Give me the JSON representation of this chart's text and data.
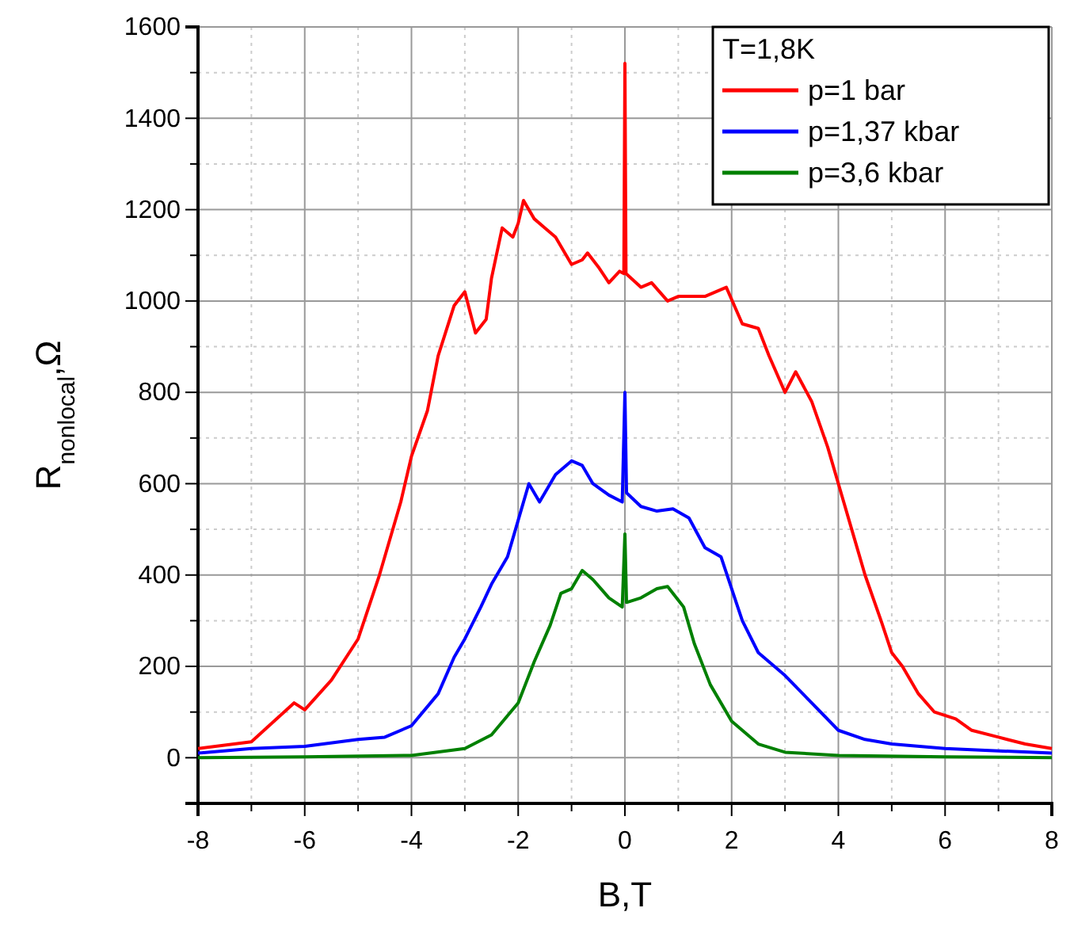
{
  "chart_data": {
    "type": "line",
    "xlabel": "B,T",
    "ylabel": "R$_{nonlocal}$,Ω",
    "legend_title": "T=1,8K",
    "legend": "top right",
    "grid": true,
    "line_style": "solid",
    "marker": "none",
    "xlim": [
      -8,
      8
    ],
    "xticks": [
      -8,
      -6,
      -4,
      -2,
      0,
      2,
      4,
      6,
      8
    ],
    "ylim": [
      -100,
      1600
    ],
    "yticks": [
      0,
      200,
      400,
      600,
      800,
      1000,
      1200,
      1400,
      1600
    ],
    "series": [
      {
        "name": "p=1 bar",
        "color": "#ff0000",
        "x": [
          -8,
          -7,
          -6.2,
          -6,
          -5.5,
          -5,
          -4.6,
          -4.2,
          -4,
          -3.7,
          -3.5,
          -3.2,
          -3,
          -2.8,
          -2.6,
          -2.5,
          -2.3,
          -2.1,
          -2,
          -1.9,
          -1.7,
          -1.5,
          -1.3,
          -1,
          -0.8,
          -0.7,
          -0.5,
          -0.3,
          -0.1,
          -0.02,
          0,
          0.02,
          0.3,
          0.5,
          0.8,
          1,
          1.5,
          1.9,
          2.2,
          2.5,
          2.7,
          3,
          3.2,
          3.5,
          3.8,
          4,
          4.3,
          4.5,
          4.8,
          5,
          5.2,
          5.5,
          5.8,
          6.2,
          6.5,
          7,
          7.5,
          8
        ],
        "values": [
          20,
          35,
          120,
          105,
          170,
          260,
          400,
          560,
          660,
          760,
          880,
          990,
          1020,
          930,
          960,
          1050,
          1160,
          1140,
          1170,
          1220,
          1180,
          1160,
          1140,
          1080,
          1090,
          1105,
          1075,
          1040,
          1065,
          1060,
          1520,
          1060,
          1030,
          1040,
          1000,
          1010,
          1010,
          1030,
          950,
          940,
          880,
          800,
          845,
          780,
          680,
          600,
          480,
          400,
          300,
          230,
          200,
          140,
          100,
          85,
          60,
          45,
          30,
          20
        ]
      },
      {
        "name": "p=1,37 kbar",
        "color": "#0000ff",
        "x": [
          -8,
          -7,
          -6,
          -5,
          -4.5,
          -4,
          -3.5,
          -3.2,
          -3,
          -2.7,
          -2.5,
          -2.2,
          -2,
          -1.8,
          -1.6,
          -1.3,
          -1,
          -0.8,
          -0.6,
          -0.3,
          -0.05,
          0,
          0.03,
          0.3,
          0.6,
          0.9,
          1.2,
          1.5,
          1.8,
          2.2,
          2.5,
          3,
          3.5,
          4,
          4.5,
          5,
          6,
          7,
          8
        ],
        "values": [
          10,
          20,
          25,
          40,
          45,
          70,
          140,
          220,
          260,
          330,
          380,
          440,
          520,
          600,
          560,
          620,
          650,
          640,
          600,
          575,
          560,
          800,
          580,
          550,
          540,
          545,
          525,
          460,
          440,
          300,
          230,
          180,
          120,
          60,
          40,
          30,
          20,
          15,
          10
        ]
      },
      {
        "name": "p=3,6 kbar",
        "color": "#008000",
        "x": [
          -8,
          -6,
          -4,
          -3,
          -2.5,
          -2,
          -1.7,
          -1.4,
          -1.2,
          -1,
          -0.8,
          -0.6,
          -0.3,
          -0.05,
          0,
          0.03,
          0.3,
          0.6,
          0.8,
          1.1,
          1.3,
          1.6,
          2,
          2.5,
          3,
          4,
          6,
          8
        ],
        "values": [
          0,
          2,
          5,
          20,
          50,
          120,
          210,
          290,
          360,
          370,
          410,
          390,
          350,
          330,
          490,
          340,
          350,
          370,
          375,
          330,
          250,
          160,
          80,
          30,
          12,
          5,
          2,
          0
        ]
      }
    ]
  }
}
